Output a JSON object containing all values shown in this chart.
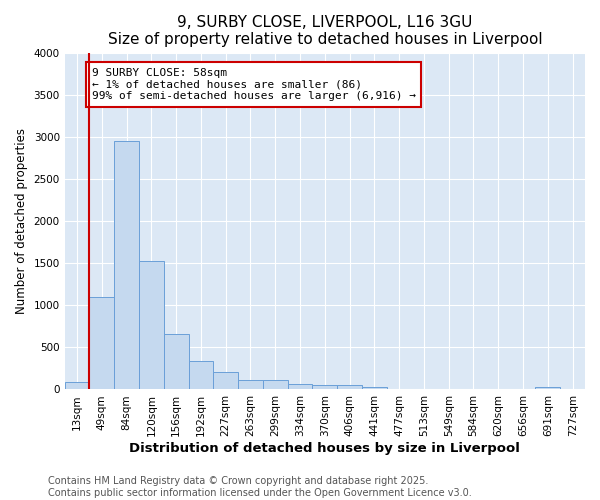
{
  "title": "9, SURBY CLOSE, LIVERPOOL, L16 3GU",
  "subtitle": "Size of property relative to detached houses in Liverpool",
  "xlabel": "Distribution of detached houses by size in Liverpool",
  "ylabel": "Number of detached properties",
  "categories": [
    "13sqm",
    "49sqm",
    "84sqm",
    "120sqm",
    "156sqm",
    "192sqm",
    "227sqm",
    "263sqm",
    "299sqm",
    "334sqm",
    "370sqm",
    "406sqm",
    "441sqm",
    "477sqm",
    "513sqm",
    "549sqm",
    "584sqm",
    "620sqm",
    "656sqm",
    "691sqm",
    "727sqm"
  ],
  "values": [
    86,
    1100,
    2950,
    1530,
    660,
    340,
    210,
    110,
    110,
    70,
    50,
    50,
    35,
    0,
    0,
    0,
    0,
    0,
    0,
    30,
    0
  ],
  "bar_color": "#c5d9ef",
  "bar_edge_color": "#6a9fd8",
  "annotation_text": "9 SURBY CLOSE: 58sqm\n← 1% of detached houses are smaller (86)\n99% of semi-detached houses are larger (6,916) →",
  "annotation_box_color": "#ffffff",
  "annotation_box_edge_color": "#cc0000",
  "red_line_color": "#cc0000",
  "fig_background_color": "#ffffff",
  "plot_background_color": "#dce8f5",
  "grid_color": "#ffffff",
  "footer_line1": "Contains HM Land Registry data © Crown copyright and database right 2025.",
  "footer_line2": "Contains public sector information licensed under the Open Government Licence v3.0.",
  "ylim": [
    0,
    4000
  ],
  "title_fontsize": 11,
  "xlabel_fontsize": 9.5,
  "ylabel_fontsize": 8.5,
  "tick_fontsize": 7.5,
  "footer_fontsize": 7
}
